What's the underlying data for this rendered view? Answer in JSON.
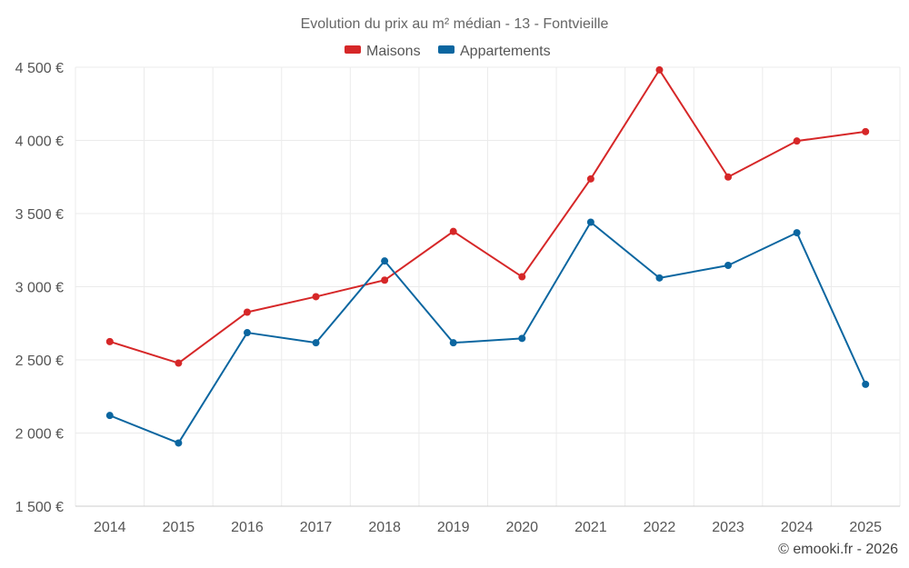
{
  "chart_data": {
    "type": "line",
    "title": "Evolution du prix au m² médian - 13 - Fontvieille",
    "categories": [
      "2014",
      "2015",
      "2016",
      "2017",
      "2018",
      "2019",
      "2020",
      "2021",
      "2022",
      "2023",
      "2024",
      "2025"
    ],
    "series": [
      {
        "name": "Maisons",
        "color": "#d62728",
        "values": [
          2625,
          2478,
          2826,
          2932,
          3045,
          3378,
          3068,
          3737,
          4482,
          3750,
          3996,
          4060
        ]
      },
      {
        "name": "Appartements",
        "color": "#0b66a0",
        "values": [
          2120,
          1932,
          2686,
          2617,
          3176,
          2617,
          2647,
          3441,
          3060,
          3146,
          3369,
          2333
        ]
      }
    ],
    "ylim": [
      1500,
      4500
    ],
    "yticks": [
      1500,
      2000,
      2500,
      3000,
      3500,
      4000,
      4500
    ],
    "ytick_labels": [
      "1 500 €",
      "2 000 €",
      "2 500 €",
      "3 000 €",
      "3 500 €",
      "4 000 €",
      "4 500 €"
    ],
    "xlabel": "",
    "ylabel": "",
    "grid": true,
    "legend_position": "top-center"
  },
  "credit": "© emooki.fr - 2026"
}
